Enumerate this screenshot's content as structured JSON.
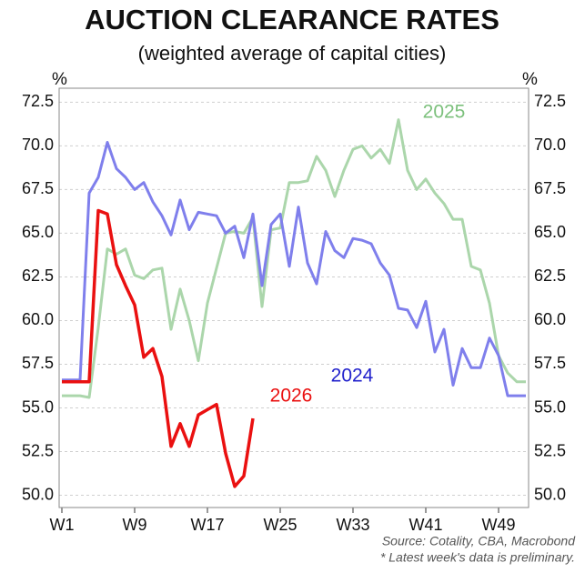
{
  "chart_data": {
    "type": "line",
    "title": "AUCTION CLEARANCE RATES",
    "subtitle": "(weighted average of capital cities)",
    "y_label": "%",
    "y2_label": "%",
    "source": "Source: Cotality, CBA, Macrobond",
    "note": "* Latest week's data is preliminary.",
    "x": [
      1,
      2,
      3,
      4,
      5,
      6,
      7,
      8,
      9,
      10,
      11,
      12,
      13,
      14,
      15,
      16,
      17,
      18,
      19,
      20,
      21,
      22,
      23,
      24,
      25,
      26,
      27,
      28,
      29,
      30,
      31,
      32,
      33,
      34,
      35,
      36,
      37,
      38,
      39,
      40,
      41,
      42,
      43,
      44,
      45,
      46,
      47,
      48,
      49,
      50,
      51,
      52
    ],
    "xlim": [
      0.7,
      52.3
    ],
    "xticks": [
      {
        "value": 1,
        "label": "W1"
      },
      {
        "value": 9,
        "label": "W9"
      },
      {
        "value": 17,
        "label": "W17"
      },
      {
        "value": 25,
        "label": "W25"
      },
      {
        "value": 33,
        "label": "W33"
      },
      {
        "value": 41,
        "label": "W41"
      },
      {
        "value": 49,
        "label": "W49"
      }
    ],
    "ylim": [
      49.3,
      73.3
    ],
    "yticks": [
      {
        "value": 50,
        "label": "50.0"
      },
      52.5,
      {
        "value": 55,
        "label": "55.0"
      },
      57.5,
      {
        "value": 60,
        "label": "60.0"
      },
      62.5,
      {
        "value": 65,
        "label": "65.0"
      },
      67.5,
      {
        "value": 70,
        "label": "70.0"
      },
      72.5
    ],
    "y2lim": [
      49.3,
      73.3
    ],
    "y2ticks": [
      {
        "value": 50,
        "label": "50.0"
      },
      52.5,
      {
        "value": 55,
        "label": "55.0"
      },
      57.5,
      {
        "value": 60,
        "label": "60.0"
      },
      62.5,
      {
        "value": 65,
        "label": "65.0"
      },
      67.5,
      {
        "value": 70,
        "label": "70.0"
      },
      72.5
    ],
    "grid": true,
    "series": [
      {
        "name": "2024",
        "color": "#7f7fec",
        "label_color": "#2222cc",
        "values": [
          56.6,
          56.6,
          56.6,
          67.3,
          68.2,
          70.2,
          68.7,
          68.2,
          67.5,
          67.9,
          66.8,
          66.0,
          64.9,
          66.9,
          65.2,
          66.2,
          66.1,
          66.0,
          65.0,
          65.4,
          63.6,
          66.1,
          62.0,
          65.5,
          66.1,
          63.1,
          66.5,
          63.3,
          62.1,
          65.1,
          64.0,
          63.6,
          64.7,
          64.6,
          64.4,
          63.3,
          62.6,
          60.7,
          60.6,
          59.6,
          61.1,
          58.2,
          59.5,
          56.3,
          58.4,
          57.3,
          57.3,
          59.0,
          58.0,
          55.7,
          55.7,
          55.7
        ]
      },
      {
        "name": "2025",
        "color": "#abd6ab",
        "label_color": "#7cc07c",
        "values": [
          55.7,
          55.7,
          55.7,
          55.6,
          59.6,
          64.1,
          63.8,
          64.1,
          62.6,
          62.4,
          62.9,
          63.0,
          59.5,
          61.8,
          60.0,
          57.7,
          61.0,
          63.0,
          65.0,
          65.1,
          65.0,
          65.9,
          60.8,
          65.2,
          65.3,
          67.9,
          67.9,
          68.0,
          69.4,
          68.6,
          67.1,
          68.6,
          69.8,
          70.0,
          69.3,
          69.8,
          69.0,
          71.5,
          68.6,
          67.5,
          68.1,
          67.3,
          66.7,
          65.8,
          65.8,
          63.1,
          62.9,
          61.0,
          58.0,
          57.0,
          56.5,
          56.5
        ]
      },
      {
        "name": "2026",
        "color": "#ea1010",
        "label_color": "#ea1010",
        "values": [
          56.5,
          56.5,
          56.5,
          56.5,
          66.3,
          66.1,
          63.2,
          62.0,
          60.9,
          57.9,
          58.4,
          56.8,
          52.8,
          54.1,
          52.8,
          54.6,
          54.9,
          55.2,
          52.4,
          50.5,
          51.1,
          54.4,
          null,
          null,
          null,
          null,
          null,
          null,
          null,
          null,
          null,
          null,
          null,
          null,
          null,
          null,
          null,
          null,
          null,
          null,
          null,
          null,
          null,
          null,
          null,
          null,
          null,
          null,
          null,
          null,
          null,
          null
        ]
      }
    ]
  }
}
